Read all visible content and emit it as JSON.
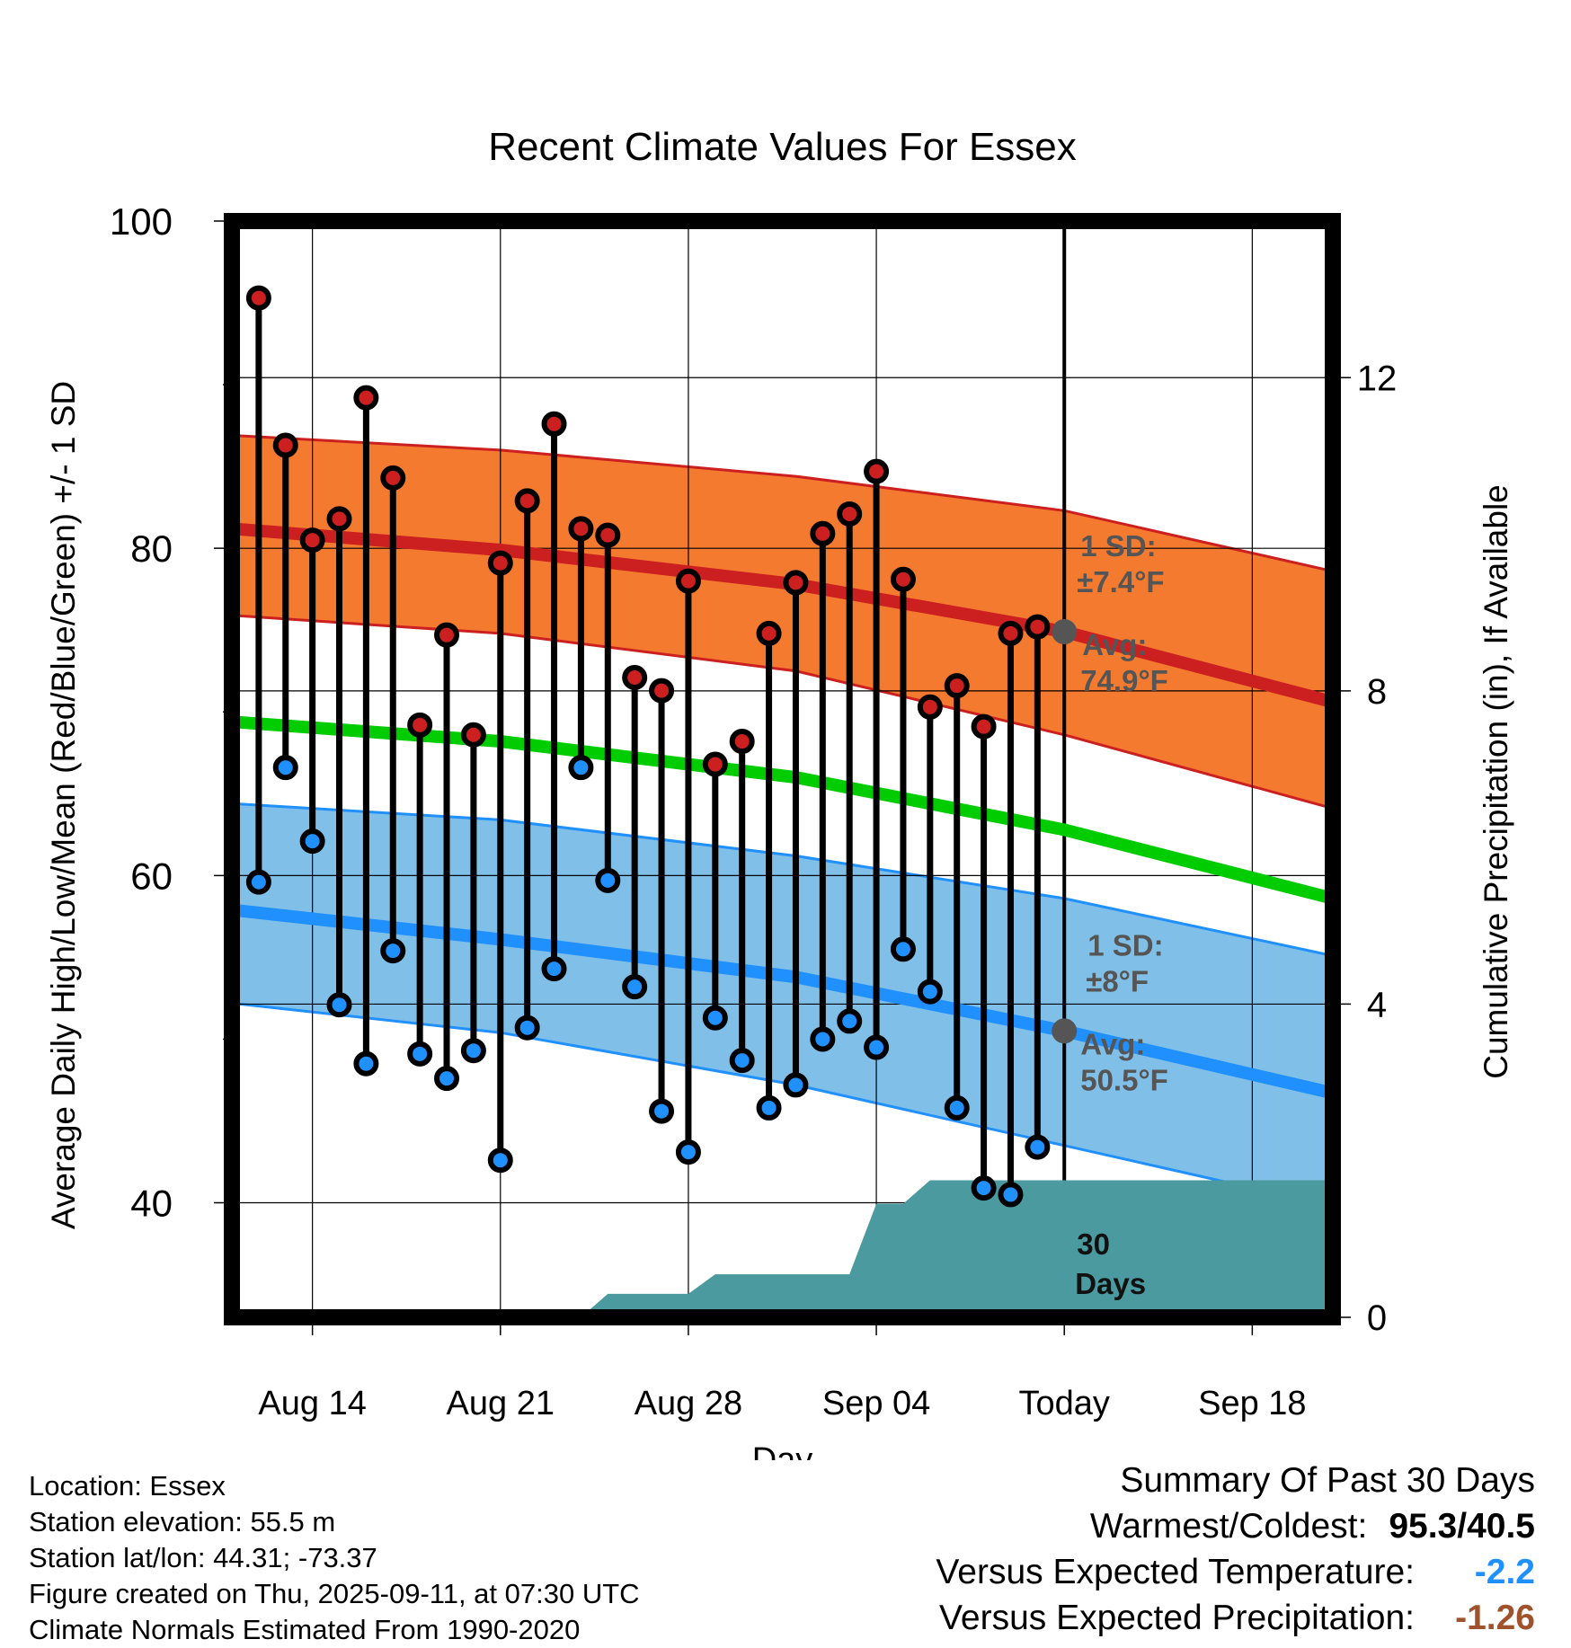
{
  "chart_data": {
    "type": "line",
    "title": "Recent Climate Values For Essex",
    "xlabel": "Day",
    "ylabel": "Average Daily High/Low/Mean (Red/Blue/Green) +/- 1 SD",
    "y2label": "Cumulative Precipitation (in), If Available",
    "ylim": [
      33,
      100
    ],
    "y2lim": [
      0,
      14
    ],
    "x_range": [
      "2025-08-11",
      "2025-09-21"
    ],
    "yticks": [
      40,
      60,
      80,
      100
    ],
    "y_minor_ticks": [
      50,
      70,
      90
    ],
    "y2ticks": [
      0,
      4,
      8,
      12
    ],
    "xticks": [
      {
        "date": "2025-08-14",
        "label": "Aug 14"
      },
      {
        "date": "2025-08-21",
        "label": "Aug 21"
      },
      {
        "date": "2025-08-28",
        "label": "Aug 28"
      },
      {
        "date": "2025-09-04",
        "label": "Sep 04"
      },
      {
        "date": "2025-09-11",
        "label": "Today"
      },
      {
        "date": "2025-09-18",
        "label": "Sep 18"
      }
    ],
    "today": "2025-09-11",
    "grid": true,
    "colors": {
      "high": "#cc2020",
      "high_band": "#f47a30",
      "low": "#2090ff",
      "low_band": "#80c0e8",
      "mean": "#00cc00",
      "precip": "#4a9aa0",
      "marker_edge": "#000000",
      "avg_marker": "#555555",
      "annotation": "#555555"
    },
    "normal_high": {
      "dates": [
        "2025-08-11",
        "2025-08-21",
        "2025-09-01",
        "2025-09-11",
        "2025-09-21"
      ],
      "avg": [
        81.2,
        79.9,
        77.8,
        74.9,
        70.6
      ],
      "upper": [
        86.9,
        86.0,
        84.4,
        82.3,
        78.6
      ],
      "lower": [
        75.9,
        74.8,
        72.5,
        68.6,
        64.1
      ]
    },
    "normal_low": {
      "dates": [
        "2025-08-11",
        "2025-08-21",
        "2025-09-01",
        "2025-09-11",
        "2025-09-21"
      ],
      "avg": [
        57.9,
        56.1,
        53.8,
        50.5,
        46.7
      ],
      "upper": [
        64.4,
        63.4,
        61.2,
        58.6,
        55.1
      ],
      "lower": [
        52.2,
        50.4,
        47.2,
        43.5,
        39.8
      ]
    },
    "normal_mean": {
      "dates": [
        "2025-08-11",
        "2025-08-21",
        "2025-09-01",
        "2025-09-11",
        "2025-09-21"
      ],
      "avg": [
        69.4,
        68.2,
        66.0,
        62.8,
        58.6
      ]
    },
    "daily": {
      "dates": [
        "2025-08-12",
        "2025-08-13",
        "2025-08-14",
        "2025-08-15",
        "2025-08-16",
        "2025-08-17",
        "2025-08-18",
        "2025-08-19",
        "2025-08-20",
        "2025-08-21",
        "2025-08-22",
        "2025-08-23",
        "2025-08-24",
        "2025-08-25",
        "2025-08-26",
        "2025-08-27",
        "2025-08-28",
        "2025-08-29",
        "2025-08-30",
        "2025-08-31",
        "2025-09-01",
        "2025-09-02",
        "2025-09-03",
        "2025-09-04",
        "2025-09-05",
        "2025-09-06",
        "2025-09-07",
        "2025-09-08",
        "2025-09-09",
        "2025-09-10"
      ],
      "high": [
        95.3,
        86.3,
        80.5,
        81.8,
        89.2,
        84.3,
        69.2,
        74.7,
        68.6,
        79.1,
        82.9,
        87.6,
        81.2,
        80.8,
        72.1,
        71.3,
        78.0,
        66.8,
        68.2,
        74.8,
        77.9,
        80.9,
        82.1,
        84.7,
        78.1,
        70.3,
        71.6,
        69.1,
        74.8,
        75.2
      ],
      "low": [
        59.6,
        66.6,
        62.1,
        52.1,
        48.5,
        55.4,
        49.1,
        47.6,
        49.3,
        42.6,
        50.7,
        54.3,
        66.6,
        59.7,
        53.2,
        45.6,
        43.1,
        51.3,
        48.7,
        45.8,
        47.2,
        50.0,
        51.1,
        49.5,
        55.5,
        52.9,
        45.8,
        40.9,
        40.5,
        43.4
      ]
    },
    "precip_cumulative": {
      "dates": [
        "2025-08-11",
        "2025-08-24",
        "2025-08-25",
        "2025-08-28",
        "2025-08-29",
        "2025-09-01",
        "2025-09-02",
        "2025-09-03",
        "2025-09-04",
        "2025-09-05",
        "2025-09-06",
        "2025-09-21"
      ],
      "values": [
        0,
        0,
        0.3,
        0.3,
        0.55,
        0.55,
        0.55,
        0.55,
        1.45,
        1.45,
        1.75,
        1.75
      ]
    },
    "annotations": {
      "high_sd": "1 SD:",
      "high_sd_value": "±7.4°F",
      "high_avg_label": "Avg:",
      "high_avg_value": "74.9°F",
      "low_sd": "1 SD:",
      "low_sd_value": "±8°F",
      "low_avg_label": "Avg:",
      "low_avg_value": "50.5°F",
      "period_line1": "30",
      "period_line2": "Days"
    }
  },
  "footer": {
    "location": "Location: Essex",
    "elevation": "Station elevation: 55.5 m",
    "latlon": "Station lat/lon: 44.31; -73.37",
    "created": "Figure created on Thu, 2025-09-11, at 07:30 UTC",
    "normals": "Climate Normals Estimated From 1990-2020"
  },
  "summary": {
    "title": "Summary Of Past 30 Days",
    "warmest_coldest_label": "Warmest/Coldest:",
    "warmest_coldest_value": "95.3/40.5",
    "temp_label": "Versus Expected Temperature:",
    "temp_value": "-2.2",
    "temp_color": "#1e90ff",
    "precip_label": "Versus Expected Precipitation:",
    "precip_value": "-1.26",
    "precip_color": "#a0522d"
  }
}
